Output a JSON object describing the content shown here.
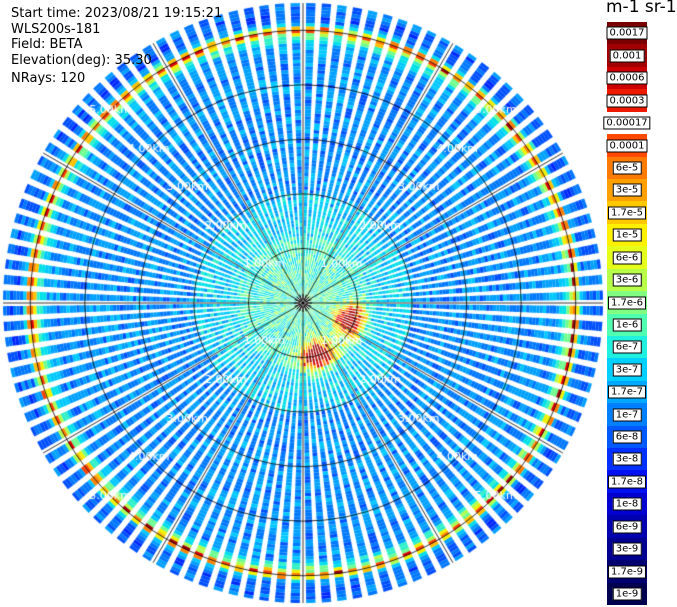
{
  "header": {
    "start_time": "Start time: 2023/08/21 19:15:21",
    "instrument": "WLS200s-181",
    "field": "Field: BETA",
    "elevation": "Elevation(deg): 35.30",
    "nrays": "NRays: 120"
  },
  "colorbar": {
    "unit": "m-1 sr-1",
    "levels": [
      "0.0017",
      "0.001",
      "0.0006",
      "0.0003",
      "0.00017",
      "0.0001",
      "6e-5",
      "3e-5",
      "1.7e-5",
      "1e-5",
      "6e-6",
      "3e-6",
      "1.7e-6",
      "1e-6",
      "6e-7",
      "3e-7",
      "1.7e-7",
      "1e-7",
      "6e-8",
      "3e-8",
      "1.7e-8",
      "1e-8",
      "6e-9",
      "3e-9",
      "1.7e-9",
      "1e-9"
    ],
    "colors": [
      "#7a0000",
      "#a00000",
      "#cc0000",
      "#ee1a00",
      "#ffffff",
      "#ff4a00",
      "#ff7a00",
      "#ffa000",
      "#ffc800",
      "#fff000",
      "#e6ff1a",
      "#b8ff48",
      "#80ff80",
      "#50ffb0",
      "#20f0e0",
      "#00d0ff",
      "#00a8ff",
      "#0080ff",
      "#0058ff",
      "#0030ff",
      "#0010f0",
      "#0000d0",
      "#0000b0",
      "#000090",
      "#000070",
      "#000050"
    ]
  },
  "chart_data": {
    "type": "heatmap",
    "projection": "polar PPI",
    "field": "BETA",
    "n_rays": 120,
    "elevation_deg": 35.3,
    "range_km_max": 5.5,
    "range_rings_km": [
      1.0,
      2.0,
      3.0,
      4.0,
      5.0
    ],
    "ring_labels": [
      "1.00km",
      "2.00km",
      "3.00km",
      "4.00km",
      "5.00km"
    ],
    "ring_label_azimuths_deg": [
      -45,
      45,
      135,
      -135
    ],
    "features": [
      {
        "description": "high backscatter ring",
        "range_km": 5.0,
        "value": "1e-5 to 6e-5"
      },
      {
        "description": "strong echo patch",
        "range_km": 1.0,
        "azimuth_deg": 165,
        "value": "1e-4 to 0.001"
      },
      {
        "description": "strong echo patch",
        "range_km": 0.9,
        "azimuth_deg": 110,
        "value": "1e-4 to 0.001"
      },
      {
        "description": "near-field region",
        "range_km": 1.5,
        "value": "1.7e-7 to 1e-6"
      }
    ]
  }
}
